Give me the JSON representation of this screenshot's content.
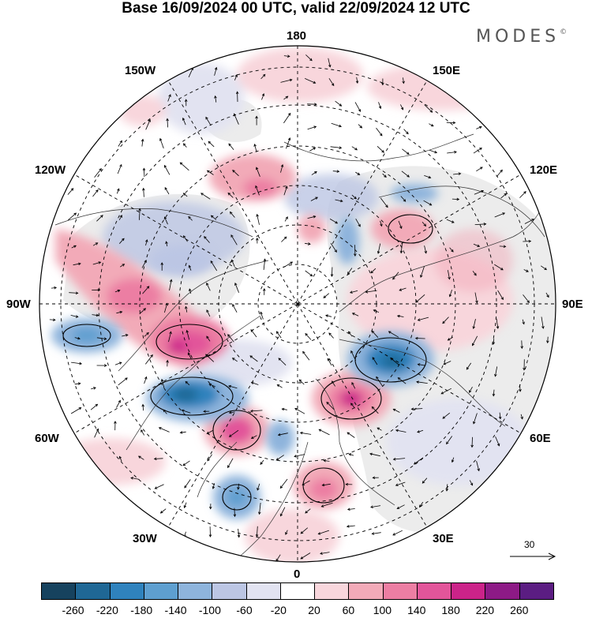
{
  "title": "Base 16/09/2024 00 UTC, valid 22/09/2024 12 UTC",
  "brand": "MODES",
  "brand_mark": "©",
  "longitude_labels": {
    "top": "180",
    "bottom": "0",
    "left": "90W",
    "right": "90E",
    "upper_left_1": "150W",
    "upper_left_2": "120W",
    "upper_right_1": "150E",
    "upper_right_2": "120E",
    "lower_left_1": "60W",
    "lower_left_2": "30W",
    "lower_right_1": "60E",
    "lower_right_2": "30E"
  },
  "vector_scale_label": "30",
  "colorbar": {
    "colors": [
      "#16425e",
      "#1f6795",
      "#2f82bd",
      "#5e9fd0",
      "#8eb4dc",
      "#bcc6e4",
      "#e2e3f1",
      "#ffffff",
      "#f8d6dc",
      "#f2aab8",
      "#ec7ea3",
      "#e2559a",
      "#cb2389",
      "#8d1a86",
      "#5b1d82"
    ],
    "tick_labels": [
      "-260",
      "-220",
      "-180",
      "-140",
      "-100",
      "-60",
      "-20",
      "20",
      "60",
      "100",
      "140",
      "180",
      "220",
      "260"
    ]
  }
}
